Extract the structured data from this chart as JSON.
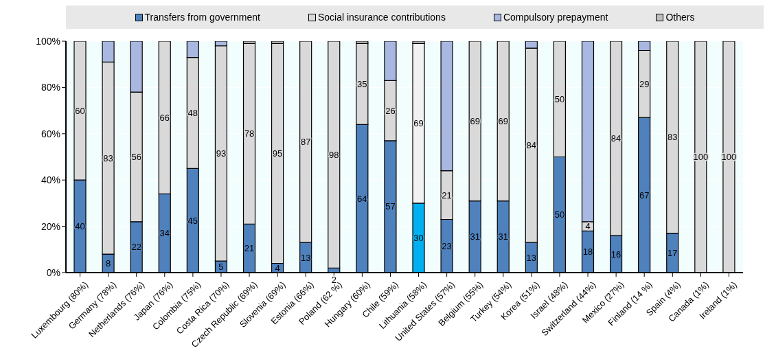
{
  "chart_data": {
    "type": "bar",
    "stacked": true,
    "legend": "top",
    "grid": "y",
    "data_labels": false,
    "categories": [
      "Luxembourg (80%)",
      "Germany (78%)",
      "Netherlands (76%)",
      "Japan (76%)",
      "Colombia (75%)",
      "Costa Rica (70%)",
      "Czech Republic (69%)",
      "Slovenia (69%)",
      "Estonia (66%)",
      "Poland (62 %)",
      "Hungary (60%)",
      "Chile (59%)",
      "Lithuania (58%)",
      "United States (57%)",
      "Belgium (55%)",
      "Turkey (54%)",
      "Korea (51%)",
      "Israel (48%)",
      "Switzerland (44%)",
      "Mexico (27%)",
      "Finland (14 %)",
      "Spain (4%)",
      "Canada (1%)",
      "Ireland (1%)"
    ],
    "ylim": [
      0,
      100
    ],
    "yticks": [
      {
        "value": 0,
        "label": "0%"
      },
      {
        "value": 20,
        "label": "20%"
      },
      {
        "value": 40,
        "label": "40%"
      },
      {
        "value": 60,
        "label": "60%"
      },
      {
        "value": 80,
        "label": "80%"
      },
      {
        "value": 100,
        "label": "100%"
      }
    ],
    "series": [
      {
        "name": "Transfers from government",
        "color": "#4f81bd",
        "colors": [
          "#4f81bd",
          "#4f81bd",
          "#4f81bd",
          "#4f81bd",
          "#4f81bd",
          "#4f81bd",
          "#4f81bd",
          "#4f81bd",
          "#4f81bd",
          "#4f81bd",
          "#4f81bd",
          "#4f81bd",
          "#00b0f0",
          "#4f81bd",
          "#4f81bd",
          "#4f81bd",
          "#4f81bd",
          "#4f81bd",
          "#4f81bd",
          "#4f81bd",
          "#4f81bd",
          "#4f81bd",
          "#4f81bd",
          "#4f81bd"
        ],
        "values": [
          40,
          8,
          22,
          34,
          45,
          5,
          21,
          4,
          13,
          2,
          64,
          57,
          30,
          23,
          31,
          31,
          13,
          50,
          18,
          16,
          67,
          17,
          null,
          null
        ],
        "value_labels": [
          "40",
          "8",
          "22",
          "34",
          "45",
          "5",
          "21",
          "4",
          "13",
          "2",
          "64",
          "57",
          "30",
          "23",
          "31",
          "31",
          "13",
          "50",
          "18",
          "16",
          "67",
          "17",
          null,
          null
        ]
      },
      {
        "name": "Social insurance contributions",
        "color": "#d9d9d9",
        "colors": [
          "#d9d9d9",
          "#d9d9d9",
          "#d9d9d9",
          "#d9d9d9",
          "#d9d9d9",
          "#d9d9d9",
          "#d9d9d9",
          "#d9d9d9",
          "#d9d9d9",
          "#d9d9d9",
          "#d9d9d9",
          "#d9d9d9",
          "#f2f2f2",
          "#d9d9d9",
          "#d9d9d9",
          "#d9d9d9",
          "#d9d9d9",
          "#d9d9d9",
          "#d9d9d9",
          "#d9d9d9",
          "#d9d9d9",
          "#d9d9d9",
          "#d9d9d9",
          "#d9d9d9"
        ],
        "values": [
          60,
          83,
          56,
          66,
          48,
          93,
          78,
          95,
          87,
          98,
          35,
          26,
          69,
          21,
          69,
          69,
          84,
          50,
          4,
          84,
          29,
          83,
          100,
          100
        ],
        "value_labels": [
          "60",
          "83",
          "56",
          "66",
          "48",
          "93",
          "78",
          "95",
          "87",
          "98",
          "35",
          "26",
          "69",
          "21",
          "69",
          "69",
          "84",
          "50",
          "4",
          "84",
          "29",
          "83",
          "100",
          "100"
        ]
      },
      {
        "name": "Compulsory prepayment",
        "color": "#a9b8e0",
        "values": [
          null,
          9,
          22,
          null,
          7,
          2,
          null,
          null,
          null,
          null,
          null,
          17,
          null,
          56,
          null,
          null,
          3,
          null,
          78,
          null,
          4,
          null,
          null,
          null
        ]
      },
      {
        "name": "Others",
        "color": "#bfbfbf",
        "values": [
          null,
          null,
          null,
          null,
          null,
          null,
          1,
          1,
          null,
          null,
          1,
          null,
          1,
          null,
          null,
          null,
          null,
          null,
          null,
          null,
          null,
          null,
          null,
          null
        ]
      }
    ]
  }
}
